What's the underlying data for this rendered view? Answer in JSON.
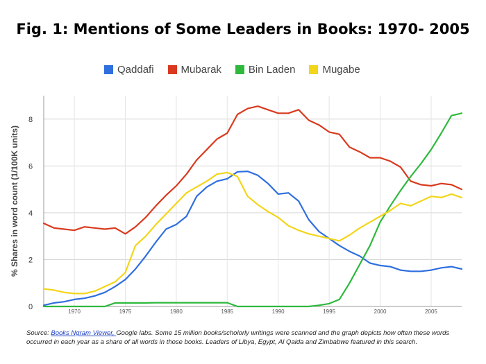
{
  "title": "Fig. 1: Mentions of Some Leaders in Books:  1970- 2005",
  "chart_data": {
    "type": "line",
    "title": "Fig. 1: Mentions of Some Leaders in Books:  1970- 2005",
    "xlabel": "",
    "ylabel": "% Shares in word count (1/100K units)",
    "xlim": [
      1967,
      2008
    ],
    "ylim": [
      0,
      9
    ],
    "x_ticks": [
      1970,
      1975,
      1980,
      1985,
      1990,
      1995,
      2000,
      2005
    ],
    "y_ticks": [
      0,
      2,
      4,
      6,
      8
    ],
    "grid": true,
    "legend_position": "top",
    "series": [
      {
        "name": "Qaddafi",
        "color": "#2f6fde",
        "x": [
          1967,
          1968,
          1969,
          1970,
          1971,
          1972,
          1973,
          1974,
          1975,
          1976,
          1977,
          1978,
          1979,
          1980,
          1981,
          1982,
          1983,
          1984,
          1985,
          1986,
          1987,
          1988,
          1989,
          1990,
          1991,
          1992,
          1993,
          1994,
          1995,
          1996,
          1997,
          1998,
          1999,
          2000,
          2001,
          2002,
          2003,
          2004,
          2005,
          2006,
          2007,
          2008
        ],
        "y": [
          0.05,
          0.15,
          0.2,
          0.3,
          0.35,
          0.45,
          0.6,
          0.85,
          1.15,
          1.6,
          2.15,
          2.75,
          3.3,
          3.5,
          3.85,
          4.7,
          5.1,
          5.35,
          5.45,
          5.75,
          5.77,
          5.6,
          5.25,
          4.8,
          4.85,
          4.5,
          3.7,
          3.2,
          2.9,
          2.6,
          2.35,
          2.15,
          1.85,
          1.75,
          1.7,
          1.55,
          1.5,
          1.5,
          1.55,
          1.65,
          1.7,
          1.6
        ]
      },
      {
        "name": "Mubarak",
        "color": "#d93a1f",
        "x": [
          1967,
          1968,
          1969,
          1970,
          1971,
          1972,
          1973,
          1974,
          1975,
          1976,
          1977,
          1978,
          1979,
          1980,
          1981,
          1982,
          1983,
          1984,
          1985,
          1986,
          1987,
          1988,
          1989,
          1990,
          1991,
          1992,
          1993,
          1994,
          1995,
          1996,
          1997,
          1998,
          1999,
          2000,
          2001,
          2002,
          2003,
          2004,
          2005,
          2006,
          2007,
          2008
        ],
        "y": [
          3.55,
          3.35,
          3.3,
          3.25,
          3.4,
          3.35,
          3.3,
          3.35,
          3.1,
          3.4,
          3.8,
          4.3,
          4.75,
          5.15,
          5.65,
          6.25,
          6.7,
          7.15,
          7.4,
          8.2,
          8.45,
          8.55,
          8.4,
          8.25,
          8.25,
          8.4,
          7.95,
          7.75,
          7.45,
          7.35,
          6.8,
          6.6,
          6.35,
          6.35,
          6.2,
          5.95,
          5.35,
          5.2,
          5.15,
          5.25,
          5.2,
          5.0
        ]
      },
      {
        "name": "Bin Laden",
        "color": "#2eb93d",
        "x": [
          1967,
          1968,
          1969,
          1970,
          1971,
          1972,
          1973,
          1974,
          1975,
          1976,
          1977,
          1978,
          1979,
          1980,
          1981,
          1982,
          1983,
          1984,
          1985,
          1986,
          1987,
          1988,
          1989,
          1990,
          1991,
          1992,
          1993,
          1994,
          1995,
          1996,
          1997,
          1998,
          1999,
          2000,
          2001,
          2002,
          2003,
          2004,
          2005,
          2006,
          2007,
          2008
        ],
        "y": [
          0,
          0,
          0,
          0,
          0,
          0,
          0,
          0.15,
          0.15,
          0.15,
          0.15,
          0.16,
          0.16,
          0.16,
          0.16,
          0.16,
          0.16,
          0.16,
          0.16,
          0.0,
          0.0,
          0.0,
          0.0,
          0.0,
          0.0,
          0.0,
          0.0,
          0.05,
          0.12,
          0.3,
          1.0,
          1.8,
          2.6,
          3.6,
          4.3,
          4.95,
          5.55,
          6.1,
          6.7,
          7.4,
          8.15,
          8.25
        ]
      },
      {
        "name": "Mugabe",
        "color": "#f3d51a",
        "x": [
          1967,
          1968,
          1969,
          1970,
          1971,
          1972,
          1973,
          1974,
          1975,
          1976,
          1977,
          1978,
          1979,
          1980,
          1981,
          1982,
          1983,
          1984,
          1985,
          1986,
          1987,
          1988,
          1989,
          1990,
          1991,
          1992,
          1993,
          1994,
          1995,
          1996,
          1997,
          1998,
          1999,
          2000,
          2001,
          2002,
          2003,
          2004,
          2005,
          2006,
          2007,
          2008
        ],
        "y": [
          0.75,
          0.7,
          0.6,
          0.55,
          0.55,
          0.65,
          0.85,
          1.05,
          1.45,
          2.6,
          3.0,
          3.5,
          3.95,
          4.4,
          4.85,
          5.1,
          5.35,
          5.65,
          5.72,
          5.55,
          4.7,
          4.35,
          4.05,
          3.8,
          3.45,
          3.25,
          3.1,
          3.0,
          2.9,
          2.8,
          3.05,
          3.35,
          3.6,
          3.85,
          4.1,
          4.4,
          4.3,
          4.5,
          4.7,
          4.65,
          4.8,
          4.65
        ]
      }
    ]
  },
  "source": {
    "prefix": "Source: ",
    "link_text": "Books Ngram Viewer, ",
    "text": "Google labs. Some 15 million books/scholorly writings were scanned and the graph depicts how often these words occurred in each year as a share of all words in those books. Leaders of  Libya, Egypt, Al Qaida and Zimbabwe featured in this search."
  }
}
